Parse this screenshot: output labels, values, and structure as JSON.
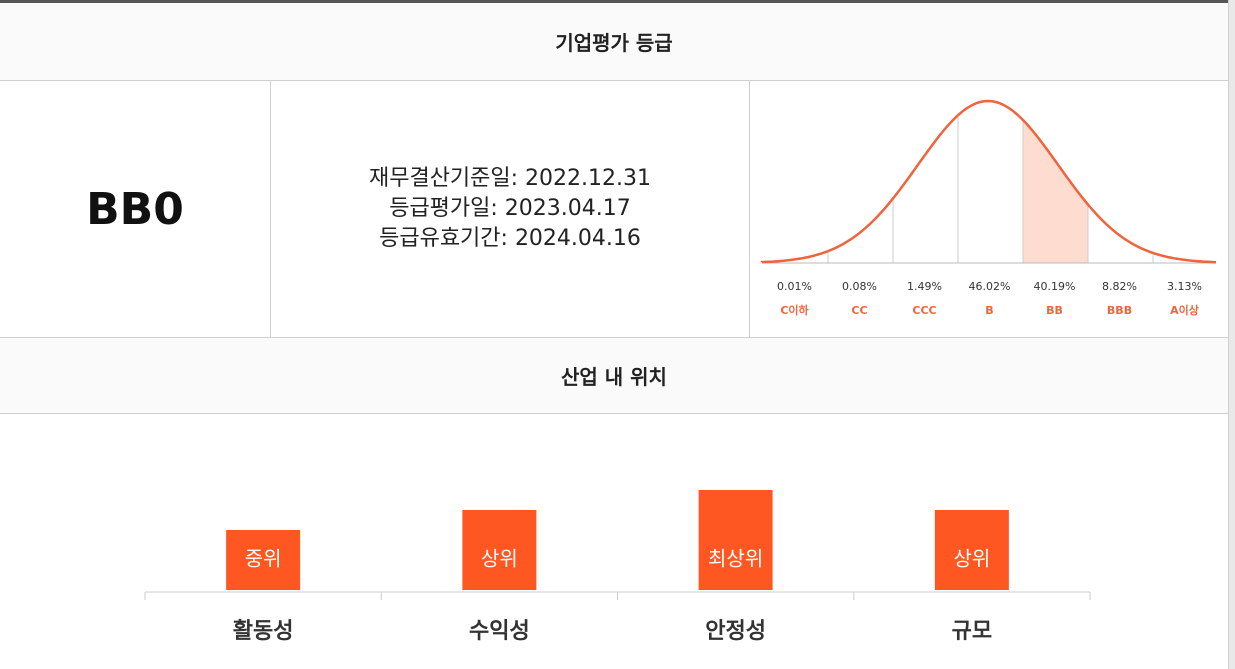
{
  "header": {
    "title": "기업평가 등급"
  },
  "grade": "BB0",
  "info": [
    "재무결산기준일: 2022.12.31",
    "등급평가일: 2023.04.17",
    "등급유효기간: 2024.04.16"
  ],
  "distribution": {
    "categories": [
      "C이하",
      "CC",
      "CCC",
      "B",
      "BB",
      "BBB",
      "A이상"
    ],
    "values": [
      0.01,
      0.08,
      1.49,
      46.02,
      40.19,
      8.82,
      3.13
    ],
    "value_labels": [
      "0.01%",
      "0.08%",
      "1.49%",
      "46.02%",
      "40.19%",
      "8.82%",
      "3.13%"
    ],
    "highlight": "BB",
    "color": "#f0643c"
  },
  "position": {
    "title": "산업 내 위치",
    "chart_data": {
      "type": "bar",
      "categories": [
        "활동성",
        "수익성",
        "안정성",
        "규모"
      ],
      "values": [
        3,
        4,
        5,
        4
      ],
      "value_labels": [
        "중위",
        "상위",
        "최상위",
        "상위"
      ],
      "ylim": [
        0,
        5
      ],
      "color": "#ff5722"
    }
  }
}
